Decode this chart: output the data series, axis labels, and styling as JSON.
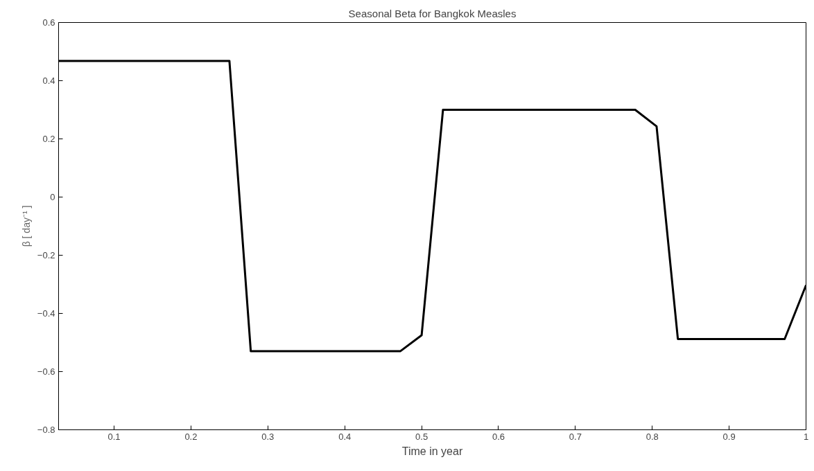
{
  "chart_data": {
    "type": "line",
    "title": "Seasonal Beta for Bangkok Measles",
    "xlabel": "Time in year",
    "ylabel": "β [ day⁻¹ ]",
    "x": [
      0.0278,
      0.0556,
      0.0833,
      0.1111,
      0.1389,
      0.1667,
      0.1944,
      0.2222,
      0.25,
      0.2778,
      0.3056,
      0.3333,
      0.3611,
      0.3889,
      0.4167,
      0.4444,
      0.4722,
      0.5,
      0.5278,
      0.5556,
      0.5833,
      0.6111,
      0.6389,
      0.6667,
      0.6944,
      0.7222,
      0.75,
      0.7778,
      0.8056,
      0.8333,
      0.8611,
      0.8889,
      0.9167,
      0.9444,
      0.9722,
      1.0
    ],
    "series": [
      {
        "color": "#000000",
        "values": [
          0.468,
          0.468,
          0.468,
          0.468,
          0.468,
          0.468,
          0.468,
          0.468,
          0.468,
          -0.53,
          -0.53,
          -0.53,
          -0.53,
          -0.53,
          -0.53,
          -0.53,
          -0.53,
          -0.475,
          0.3,
          0.3,
          0.3,
          0.3,
          0.3,
          0.3,
          0.3,
          0.3,
          0.3,
          0.3,
          0.243,
          -0.488,
          -0.488,
          -0.488,
          -0.488,
          -0.488,
          -0.488,
          -0.303
        ]
      }
    ],
    "xlim": [
      0.0278,
      1.0
    ],
    "ylim": [
      -0.8,
      0.6
    ],
    "xticks": [
      0.1,
      0.2,
      0.3,
      0.4,
      0.5,
      0.6,
      0.7,
      0.8,
      0.9,
      {
        "value": 1.0,
        "label": "1"
      }
    ],
    "yticks": [
      {
        "value": -0.8,
        "label": "−0.8"
      },
      {
        "value": -0.6,
        "label": "−0.6"
      },
      {
        "value": -0.4,
        "label": "−0.4"
      },
      {
        "value": -0.2,
        "label": "−0.2"
      },
      0,
      0.2,
      0.4,
      0.6
    ],
    "grid": false,
    "marker": "none",
    "line_style": "solid"
  }
}
